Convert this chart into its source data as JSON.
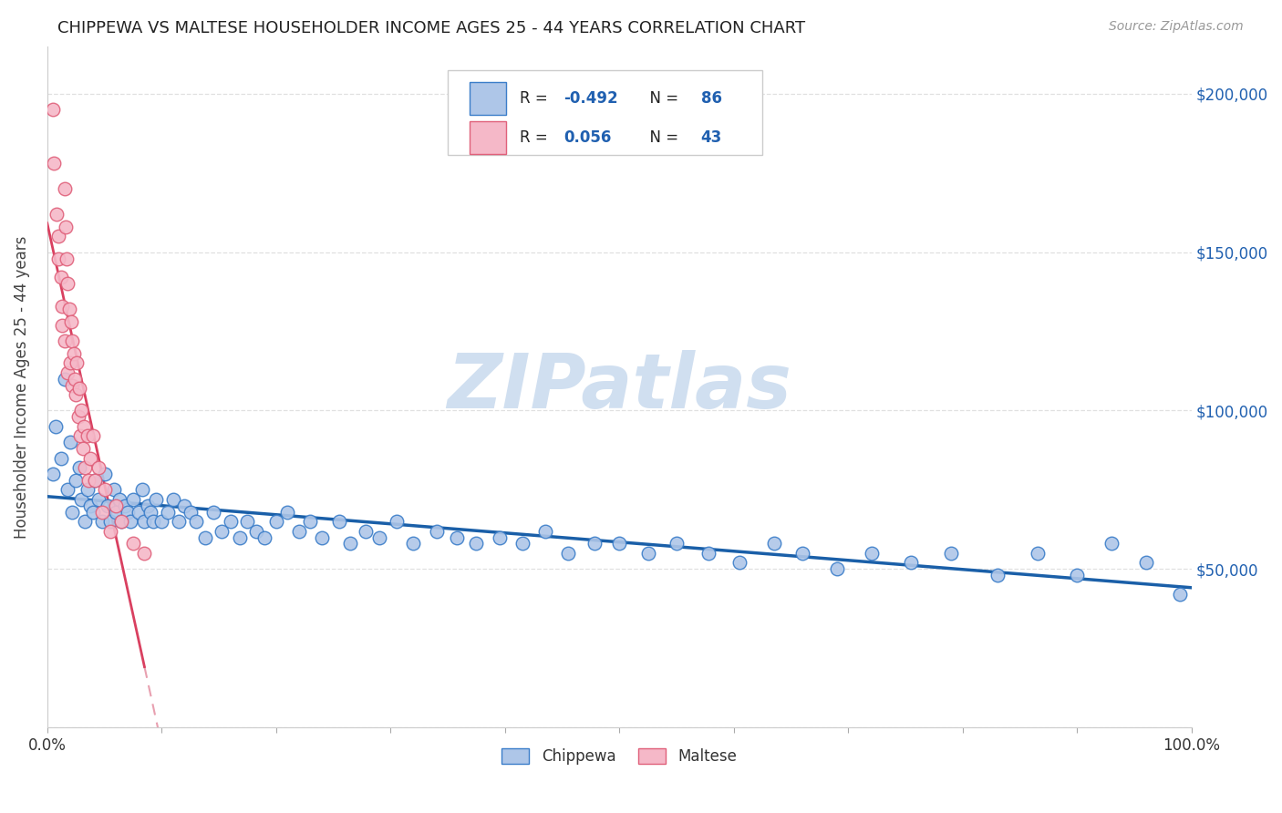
{
  "title": "CHIPPEWA VS MALTESE HOUSEHOLDER INCOME AGES 25 - 44 YEARS CORRELATION CHART",
  "source": "Source: ZipAtlas.com",
  "ylabel": "Householder Income Ages 25 - 44 years",
  "xlim": [
    0.0,
    1.0
  ],
  "ylim": [
    0,
    215000
  ],
  "yticks": [
    0,
    50000,
    100000,
    150000,
    200000
  ],
  "xticks": [
    0.0,
    0.1,
    0.2,
    0.3,
    0.4,
    0.5,
    0.6,
    0.7,
    0.8,
    0.9,
    1.0
  ],
  "chippewa_R": -0.492,
  "chippewa_N": 86,
  "maltese_R": 0.056,
  "maltese_N": 43,
  "chippewa_color": "#aec6e8",
  "maltese_color": "#f5b8c8",
  "chippewa_edge_color": "#3a7dc9",
  "maltese_edge_color": "#e0607a",
  "chippewa_line_color": "#1a5fa8",
  "maltese_line_color": "#d94060",
  "maltese_dash_color": "#e8a0b0",
  "grid_color": "#e0e0e0",
  "watermark_color": "#d0dff0",
  "chippewa_x": [
    0.005,
    0.007,
    0.012,
    0.015,
    0.018,
    0.02,
    0.022,
    0.025,
    0.028,
    0.03,
    0.033,
    0.035,
    0.038,
    0.04,
    0.042,
    0.045,
    0.048,
    0.05,
    0.053,
    0.055,
    0.058,
    0.06,
    0.063,
    0.065,
    0.068,
    0.07,
    0.073,
    0.075,
    0.08,
    0.083,
    0.085,
    0.088,
    0.09,
    0.093,
    0.095,
    0.1,
    0.105,
    0.11,
    0.115,
    0.12,
    0.125,
    0.13,
    0.138,
    0.145,
    0.152,
    0.16,
    0.168,
    0.175,
    0.183,
    0.19,
    0.2,
    0.21,
    0.22,
    0.23,
    0.24,
    0.255,
    0.265,
    0.278,
    0.29,
    0.305,
    0.32,
    0.34,
    0.358,
    0.375,
    0.395,
    0.415,
    0.435,
    0.455,
    0.478,
    0.5,
    0.525,
    0.55,
    0.578,
    0.605,
    0.635,
    0.66,
    0.69,
    0.72,
    0.755,
    0.79,
    0.83,
    0.865,
    0.9,
    0.93,
    0.96,
    0.99
  ],
  "chippewa_y": [
    80000,
    95000,
    85000,
    110000,
    75000,
    90000,
    68000,
    78000,
    82000,
    72000,
    65000,
    75000,
    70000,
    68000,
    78000,
    72000,
    65000,
    80000,
    70000,
    65000,
    75000,
    68000,
    72000,
    65000,
    70000,
    68000,
    65000,
    72000,
    68000,
    75000,
    65000,
    70000,
    68000,
    65000,
    72000,
    65000,
    68000,
    72000,
    65000,
    70000,
    68000,
    65000,
    60000,
    68000,
    62000,
    65000,
    60000,
    65000,
    62000,
    60000,
    65000,
    68000,
    62000,
    65000,
    60000,
    65000,
    58000,
    62000,
    60000,
    65000,
    58000,
    62000,
    60000,
    58000,
    60000,
    58000,
    62000,
    55000,
    58000,
    58000,
    55000,
    58000,
    55000,
    52000,
    58000,
    55000,
    50000,
    55000,
    52000,
    55000,
    48000,
    55000,
    48000,
    58000,
    52000,
    42000
  ],
  "maltese_x": [
    0.005,
    0.006,
    0.008,
    0.01,
    0.01,
    0.012,
    0.013,
    0.013,
    0.015,
    0.015,
    0.016,
    0.017,
    0.018,
    0.018,
    0.019,
    0.02,
    0.021,
    0.022,
    0.022,
    0.023,
    0.024,
    0.025,
    0.026,
    0.027,
    0.028,
    0.029,
    0.03,
    0.031,
    0.032,
    0.033,
    0.035,
    0.036,
    0.038,
    0.04,
    0.042,
    0.045,
    0.048,
    0.05,
    0.055,
    0.06,
    0.065,
    0.075,
    0.085
  ],
  "maltese_y": [
    195000,
    178000,
    162000,
    155000,
    148000,
    142000,
    133000,
    127000,
    170000,
    122000,
    158000,
    148000,
    140000,
    112000,
    132000,
    115000,
    128000,
    108000,
    122000,
    118000,
    110000,
    105000,
    115000,
    98000,
    107000,
    92000,
    100000,
    88000,
    95000,
    82000,
    92000,
    78000,
    85000,
    92000,
    78000,
    82000,
    68000,
    75000,
    62000,
    70000,
    65000,
    58000,
    55000
  ]
}
